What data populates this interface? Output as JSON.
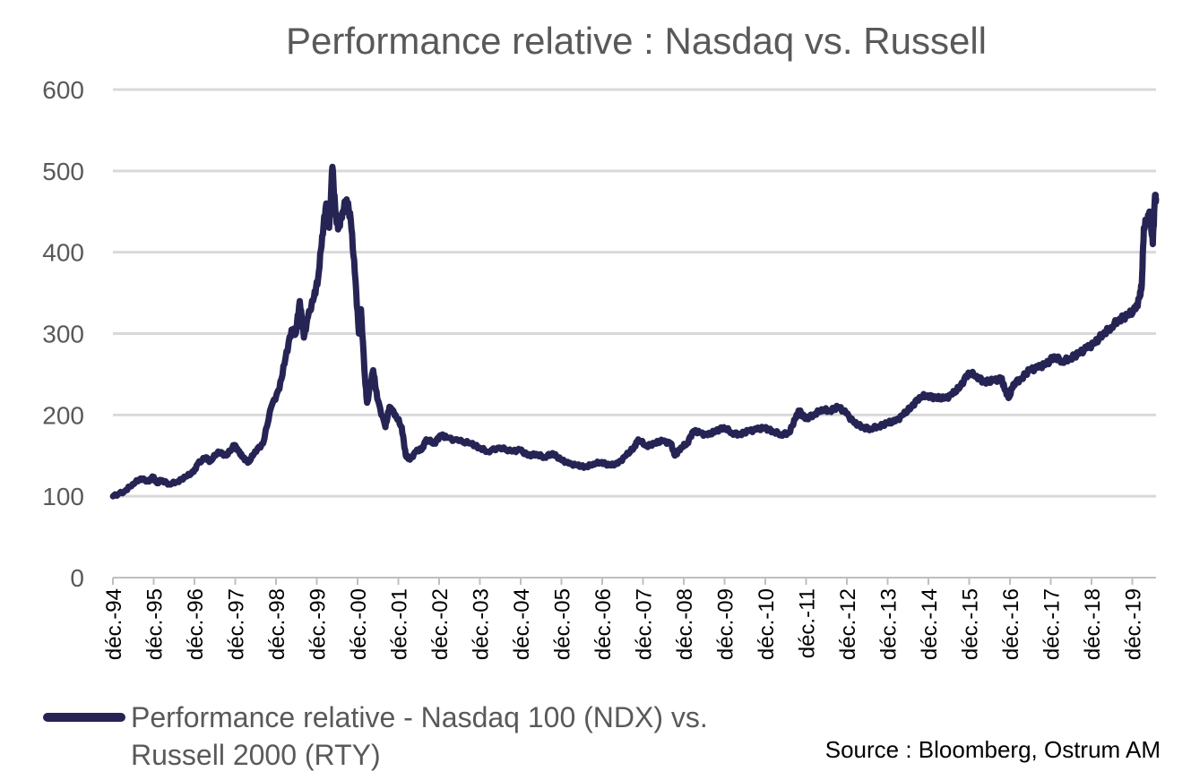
{
  "chart_data": {
    "type": "line",
    "title": "Performance relative : Nasdaq vs. Russell",
    "ylim": [
      0,
      600
    ],
    "yticks": [
      0,
      100,
      200,
      300,
      400,
      500,
      600
    ],
    "xticks": [
      "déc.-94",
      "déc.-95",
      "déc.-96",
      "déc.-97",
      "déc.-98",
      "déc.-99",
      "déc.-00",
      "déc.-01",
      "déc.-02",
      "déc.-03",
      "déc.-04",
      "déc.-05",
      "déc.-06",
      "déc.-07",
      "déc.-08",
      "déc.-09",
      "déc.-10",
      "déc.-11",
      "déc.-12",
      "déc.-13",
      "déc.-14",
      "déc.-15",
      "déc.-16",
      "déc.-17",
      "déc.-18",
      "déc.-19"
    ],
    "x_range": [
      1994.917,
      2020.5
    ],
    "grid": true,
    "legend_position": "bottom-left",
    "series": [
      {
        "name": "Performance relative - Nasdaq 100 (NDX) vs. Russell 2000 (RTY)",
        "color": "#262454",
        "points": [
          [
            1994.92,
            100
          ],
          [
            1995.2,
            106
          ],
          [
            1995.4,
            115
          ],
          [
            1995.6,
            122
          ],
          [
            1995.8,
            118
          ],
          [
            1995.9,
            124
          ],
          [
            1996.0,
            116
          ],
          [
            1996.1,
            120
          ],
          [
            1996.3,
            115
          ],
          [
            1996.5,
            118
          ],
          [
            1996.7,
            124
          ],
          [
            1996.9,
            130
          ],
          [
            1997.0,
            140
          ],
          [
            1997.2,
            148
          ],
          [
            1997.3,
            143
          ],
          [
            1997.5,
            155
          ],
          [
            1997.7,
            150
          ],
          [
            1997.9,
            163
          ],
          [
            1998.0,
            155
          ],
          [
            1998.1,
            148
          ],
          [
            1998.25,
            142
          ],
          [
            1998.4,
            155
          ],
          [
            1998.6,
            165
          ],
          [
            1998.8,
            210
          ],
          [
            1999.0,
            232
          ],
          [
            1999.15,
            270
          ],
          [
            1999.3,
            305
          ],
          [
            1999.4,
            300
          ],
          [
            1999.5,
            340
          ],
          [
            1999.6,
            295
          ],
          [
            1999.7,
            320
          ],
          [
            1999.85,
            345
          ],
          [
            1999.95,
            368
          ],
          [
            2000.05,
            420
          ],
          [
            2000.15,
            460
          ],
          [
            2000.22,
            430
          ],
          [
            2000.3,
            505
          ],
          [
            2000.38,
            445
          ],
          [
            2000.45,
            430
          ],
          [
            2000.55,
            450
          ],
          [
            2000.65,
            465
          ],
          [
            2000.75,
            440
          ],
          [
            2000.85,
            375
          ],
          [
            2000.95,
            300
          ],
          [
            2001.0,
            330
          ],
          [
            2001.1,
            245
          ],
          [
            2001.15,
            215
          ],
          [
            2001.3,
            255
          ],
          [
            2001.4,
            220
          ],
          [
            2001.6,
            185
          ],
          [
            2001.7,
            210
          ],
          [
            2001.85,
            200
          ],
          [
            2002.0,
            185
          ],
          [
            2002.1,
            150
          ],
          [
            2002.2,
            145
          ],
          [
            2002.35,
            155
          ],
          [
            2002.5,
            158
          ],
          [
            2002.6,
            170
          ],
          [
            2002.8,
            165
          ],
          [
            2002.95,
            175
          ],
          [
            2003.1,
            172
          ],
          [
            2003.4,
            168
          ],
          [
            2003.7,
            165
          ],
          [
            2003.9,
            160
          ],
          [
            2004.1,
            155
          ],
          [
            2004.4,
            160
          ],
          [
            2004.7,
            155
          ],
          [
            2004.9,
            157
          ],
          [
            2005.1,
            150
          ],
          [
            2005.3,
            152
          ],
          [
            2005.5,
            148
          ],
          [
            2005.7,
            153
          ],
          [
            2005.9,
            145
          ],
          [
            2006.1,
            140
          ],
          [
            2006.3,
            138
          ],
          [
            2006.5,
            136
          ],
          [
            2006.7,
            140
          ],
          [
            2006.9,
            142
          ],
          [
            2007.1,
            138
          ],
          [
            2007.3,
            140
          ],
          [
            2007.5,
            150
          ],
          [
            2007.7,
            160
          ],
          [
            2007.8,
            170
          ],
          [
            2008.0,
            162
          ],
          [
            2008.2,
            165
          ],
          [
            2008.4,
            168
          ],
          [
            2008.6,
            165
          ],
          [
            2008.7,
            150
          ],
          [
            2008.85,
            160
          ],
          [
            2009.0,
            165
          ],
          [
            2009.15,
            180
          ],
          [
            2009.3,
            178
          ],
          [
            2009.5,
            175
          ],
          [
            2009.7,
            180
          ],
          [
            2009.9,
            185
          ],
          [
            2010.1,
            178
          ],
          [
            2010.3,
            176
          ],
          [
            2010.5,
            180
          ],
          [
            2010.7,
            182
          ],
          [
            2010.9,
            184
          ],
          [
            2011.1,
            180
          ],
          [
            2011.3,
            176
          ],
          [
            2011.5,
            178
          ],
          [
            2011.65,
            195
          ],
          [
            2011.75,
            205
          ],
          [
            2011.9,
            195
          ],
          [
            2012.1,
            200
          ],
          [
            2012.3,
            207
          ],
          [
            2012.5,
            205
          ],
          [
            2012.7,
            210
          ],
          [
            2012.9,
            202
          ],
          [
            2013.1,
            190
          ],
          [
            2013.3,
            185
          ],
          [
            2013.5,
            183
          ],
          [
            2013.7,
            186
          ],
          [
            2013.9,
            190
          ],
          [
            2014.1,
            192
          ],
          [
            2014.3,
            200
          ],
          [
            2014.5,
            210
          ],
          [
            2014.7,
            222
          ],
          [
            2014.9,
            224
          ],
          [
            2015.1,
            221
          ],
          [
            2015.3,
            220
          ],
          [
            2015.5,
            225
          ],
          [
            2015.7,
            235
          ],
          [
            2015.9,
            252
          ],
          [
            2016.1,
            248
          ],
          [
            2016.3,
            240
          ],
          [
            2016.5,
            242
          ],
          [
            2016.7,
            245
          ],
          [
            2016.8,
            230
          ],
          [
            2016.9,
            222
          ],
          [
            2017.0,
            238
          ],
          [
            2017.2,
            245
          ],
          [
            2017.4,
            255
          ],
          [
            2017.6,
            258
          ],
          [
            2017.8,
            262
          ],
          [
            2018.0,
            272
          ],
          [
            2018.2,
            266
          ],
          [
            2018.4,
            270
          ],
          [
            2018.6,
            275
          ],
          [
            2018.8,
            282
          ],
          [
            2019.0,
            288
          ],
          [
            2019.2,
            300
          ],
          [
            2019.4,
            308
          ],
          [
            2019.6,
            318
          ],
          [
            2019.8,
            322
          ],
          [
            2020.0,
            330
          ],
          [
            2020.1,
            345
          ],
          [
            2020.15,
            360
          ],
          [
            2020.2,
            430
          ],
          [
            2020.28,
            440
          ],
          [
            2020.35,
            448
          ],
          [
            2020.42,
            410
          ],
          [
            2020.47,
            465
          ],
          [
            2020.5,
            465
          ]
        ]
      }
    ],
    "source": "Source : Bloomberg, Ostrum AM"
  }
}
